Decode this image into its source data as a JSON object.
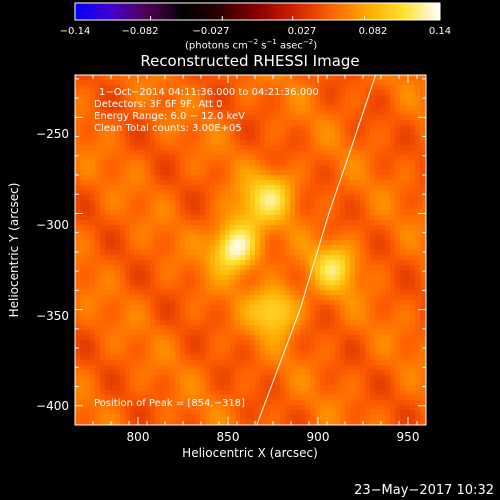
{
  "colorbar": {
    "tick_labels": [
      "−0.14",
      "−0.082",
      "−0.027",
      "0.027",
      "0.082",
      "0.14"
    ],
    "ticks": [
      -0.14,
      -0.082,
      -0.027,
      0.027,
      0.082,
      0.14
    ],
    "range": [
      -0.14,
      0.14
    ],
    "colormap": [
      "#0000ff",
      "#4400cc",
      "#500050",
      "#000000",
      "#300000",
      "#8a0000",
      "#d02000",
      "#ff6000",
      "#ffa800",
      "#ffe030",
      "#ffffff"
    ],
    "units": "(photons cm",
    "units_sup1": "−2",
    "units_mid": " s",
    "units_sup2": "−1",
    "units_end": " asec",
    "units_sup3": "−2",
    "units_close": ")"
  },
  "chart_data": {
    "type": "heatmap",
    "title": "Reconstructed RHESSI Image",
    "xlabel": "Heliocentric X (arcsec)",
    "ylabel": "Heliocentric Y (arcsec)",
    "xlim": [
      765,
      960
    ],
    "ylim": [
      -410,
      -228
    ],
    "xticks": [
      800,
      850,
      900,
      950
    ],
    "yticks": [
      -250,
      -300,
      -350,
      -400
    ],
    "xtick_labels": [
      "800",
      "850",
      "900",
      "950"
    ],
    "ytick_labels": [
      "−250",
      "−300",
      "−350",
      "−400"
    ],
    "background_value": 0.058,
    "sources": [
      {
        "x": 854,
        "y": -318,
        "peak": 0.14
      },
      {
        "x": 875,
        "y": -290,
        "peak": 0.105
      },
      {
        "x": 876,
        "y": -350,
        "peak": 0.115
      },
      {
        "x": 909,
        "y": -328,
        "peak": 0.11
      },
      {
        "x": 862,
        "y": -298,
        "peak": 0.082
      }
    ],
    "limb": [
      [
        932,
        -228
      ],
      [
        917,
        -270
      ],
      [
        906,
        -300
      ],
      [
        898,
        -325
      ],
      [
        890,
        -350
      ],
      [
        878,
        -380
      ],
      [
        866,
        -410
      ]
    ],
    "annotations": {
      "time": "1−Oct−2014 04:11:36.000 to 04:21:36.000",
      "detectors": "Detectors: 3F 6F 9F, Att 0",
      "energy": "Energy Range: 6.0 − 12.0 keV",
      "clean": "Clean     Total counts: 3.00E+05",
      "peak": "Position of Peak = [854,−318]"
    },
    "grid": false,
    "legend": "none"
  },
  "footer": {
    "date": "23−May−2017 10:32"
  }
}
